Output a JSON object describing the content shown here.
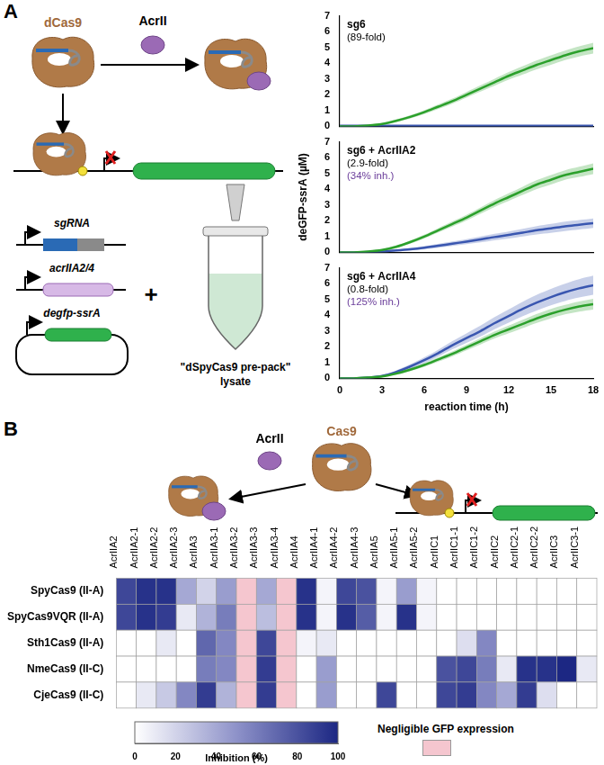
{
  "panel_labels": [
    "A",
    "B"
  ],
  "diagram_a": {
    "protein": "dCas9",
    "inhibitor": "AcrII",
    "genes": [
      "sgRNA",
      "acrIIA2/4",
      "degfp-ssrA"
    ],
    "plus": "+",
    "lysate": [
      "\"dSpyCas9 pre-pack\"",
      "lysate"
    ]
  },
  "diagram_b": {
    "protein": "Cas9",
    "inhibitor": "AcrII"
  },
  "chart_data": [
    {
      "type": "line",
      "annotations": [
        {
          "text": "sg6",
          "color": "#000000"
        },
        {
          "text": "(89-fold)",
          "color": "#000000"
        }
      ],
      "x": [
        0,
        1,
        2,
        3,
        4,
        5,
        6,
        7,
        8,
        9,
        10,
        11,
        12,
        13,
        14,
        15,
        16,
        17,
        18
      ],
      "series": [
        {
          "color": "#2ca02c",
          "values": [
            0,
            0,
            0.05,
            0.15,
            0.35,
            0.6,
            0.9,
            1.25,
            1.6,
            2.0,
            2.4,
            2.8,
            3.2,
            3.55,
            3.9,
            4.2,
            4.5,
            4.75,
            4.95
          ],
          "error": [
            0,
            0,
            0.02,
            0.05,
            0.08,
            0.1,
            0.12,
            0.14,
            0.16,
            0.18,
            0.2,
            0.22,
            0.24,
            0.26,
            0.28,
            0.3,
            0.3,
            0.32,
            0.34
          ]
        },
        {
          "color": "#3a56b0",
          "values": [
            0.03,
            0.03,
            0.03,
            0.03,
            0.03,
            0.03,
            0.03,
            0.03,
            0.03,
            0.03,
            0.03,
            0.03,
            0.03,
            0.03,
            0.03,
            0.03,
            0.03,
            0.03,
            0.03
          ],
          "error": [
            0.02,
            0.02,
            0.02,
            0.02,
            0.02,
            0.02,
            0.02,
            0.02,
            0.02,
            0.02,
            0.02,
            0.02,
            0.02,
            0.02,
            0.02,
            0.02,
            0.02,
            0.02,
            0.02
          ]
        }
      ],
      "xlim": [
        0,
        18
      ],
      "xticks": [
        0,
        3,
        6,
        9,
        12,
        15,
        18
      ],
      "ylim": [
        0,
        7
      ],
      "yticks": [
        0,
        1,
        2,
        3,
        4,
        5,
        6,
        7
      ],
      "tick_labels": "y",
      "grid": false
    },
    {
      "type": "line",
      "y_label": "deGFP-ssrA (µM)",
      "annotations": [
        {
          "text": "sg6 + AcrIIA2",
          "color": "#000000"
        },
        {
          "text": "(2.9-fold)",
          "color": "#000000"
        },
        {
          "text": "(34% inh.)",
          "color": "#6a3d9a"
        }
      ],
      "x": [
        0,
        1,
        2,
        3,
        4,
        5,
        6,
        7,
        8,
        9,
        10,
        11,
        12,
        13,
        14,
        15,
        16,
        17,
        18
      ],
      "series": [
        {
          "color": "#2ca02c",
          "values": [
            0,
            0,
            0.05,
            0.15,
            0.35,
            0.65,
            1.0,
            1.4,
            1.8,
            2.2,
            2.65,
            3.1,
            3.5,
            3.9,
            4.3,
            4.6,
            4.9,
            5.1,
            5.3
          ],
          "error": [
            0,
            0,
            0.02,
            0.05,
            0.08,
            0.1,
            0.12,
            0.14,
            0.16,
            0.18,
            0.2,
            0.22,
            0.24,
            0.26,
            0.28,
            0.3,
            0.3,
            0.32,
            0.34
          ]
        },
        {
          "color": "#3a56b0",
          "values": [
            0,
            0,
            0.02,
            0.05,
            0.12,
            0.2,
            0.3,
            0.42,
            0.55,
            0.68,
            0.82,
            0.97,
            1.1,
            1.25,
            1.4,
            1.52,
            1.65,
            1.75,
            1.85
          ],
          "error": [
            0,
            0,
            0.02,
            0.04,
            0.06,
            0.08,
            0.1,
            0.12,
            0.14,
            0.16,
            0.18,
            0.2,
            0.22,
            0.24,
            0.26,
            0.28,
            0.3,
            0.3,
            0.3
          ]
        }
      ],
      "xlim": [
        0,
        18
      ],
      "xticks": [
        0,
        3,
        6,
        9,
        12,
        15,
        18
      ],
      "ylim": [
        0,
        7
      ],
      "yticks": [
        0,
        1,
        2,
        3,
        4,
        5,
        6,
        7
      ],
      "tick_labels": "y",
      "grid": false
    },
    {
      "type": "line",
      "x_label": "reaction time (h)",
      "annotations": [
        {
          "text": "sg6 + AcrIIA4",
          "color": "#000000"
        },
        {
          "text": "(0.8-fold)",
          "color": "#000000"
        },
        {
          "text": "(125% inh.)",
          "color": "#6a3d9a"
        }
      ],
      "x": [
        0,
        1,
        2,
        3,
        4,
        5,
        6,
        7,
        8,
        9,
        10,
        11,
        12,
        13,
        14,
        15,
        16,
        17,
        18
      ],
      "series": [
        {
          "color": "#2ca02c",
          "values": [
            0,
            0,
            0.05,
            0.12,
            0.3,
            0.55,
            0.85,
            1.2,
            1.55,
            1.95,
            2.35,
            2.75,
            3.1,
            3.45,
            3.8,
            4.1,
            4.35,
            4.55,
            4.7
          ],
          "error": [
            0,
            0,
            0.02,
            0.05,
            0.08,
            0.1,
            0.12,
            0.14,
            0.16,
            0.18,
            0.2,
            0.22,
            0.24,
            0.26,
            0.28,
            0.3,
            0.3,
            0.32,
            0.34
          ]
        },
        {
          "color": "#3a56b0",
          "values": [
            0,
            0,
            0.05,
            0.15,
            0.4,
            0.75,
            1.15,
            1.6,
            2.1,
            2.55,
            3.0,
            3.5,
            3.95,
            4.4,
            4.8,
            5.15,
            5.45,
            5.7,
            5.9
          ],
          "error": [
            0,
            0,
            0.03,
            0.06,
            0.1,
            0.14,
            0.18,
            0.22,
            0.26,
            0.3,
            0.34,
            0.38,
            0.42,
            0.46,
            0.5,
            0.52,
            0.55,
            0.58,
            0.6
          ]
        }
      ],
      "xlim": [
        0,
        18
      ],
      "xticks": [
        0,
        3,
        6,
        9,
        12,
        15,
        18
      ],
      "ylim": [
        0,
        7
      ],
      "yticks": [
        0,
        1,
        2,
        3,
        4,
        5,
        6,
        7
      ],
      "grid": false
    },
    {
      "type": "heatmap",
      "categories": [
        "AcrIIA2",
        "AcrIIA2-1",
        "AcrIIA2-2",
        "AcrIIA2-3",
        "AcrIIA3",
        "AcrIIA3-1",
        "AcrIIA3-2",
        "AcrIIA3-3",
        "AcrIIA3-4",
        "AcrIIA4",
        "AcrIIA4-1",
        "AcrIIA4-2",
        "AcrIIA4-3",
        "AcrIIA5",
        "AcrIIA5-1",
        "AcrIIA5-2",
        "AcrIIC1",
        "AcrIIC1-1",
        "AcrIIC1-2",
        "AcrIIC2",
        "AcrIIC2-1",
        "AcrIIC2-2",
        "AcrIIC3",
        "AcrIIC3-1"
      ],
      "rows": [
        "SpyCas9 (II-A)",
        "SpyCas9VQR (II-A)",
        "Sth1Cas9 (II-A)",
        "NmeCas9 (II-C)",
        "CjeCas9 (II-C)"
      ],
      "cells": [
        [
          85,
          95,
          95,
          40,
          20,
          45,
          null,
          40,
          null,
          95,
          5,
          85,
          80,
          5,
          45,
          5,
          0,
          0,
          0,
          0,
          0,
          0,
          0,
          0
        ],
        [
          85,
          95,
          90,
          10,
          35,
          60,
          null,
          30,
          null,
          95,
          5,
          95,
          75,
          5,
          95,
          5,
          0,
          0,
          0,
          0,
          0,
          0,
          0,
          0
        ],
        [
          0,
          0,
          10,
          0,
          70,
          55,
          null,
          85,
          null,
          5,
          10,
          0,
          0,
          0,
          0,
          0,
          0,
          15,
          55,
          0,
          0,
          0,
          0,
          0
        ],
        [
          0,
          0,
          0,
          0,
          60,
          55,
          null,
          90,
          null,
          0,
          45,
          0,
          0,
          0,
          0,
          0,
          80,
          85,
          60,
          10,
          95,
          95,
          100,
          10
        ],
        [
          0,
          10,
          25,
          55,
          90,
          35,
          null,
          90,
          null,
          0,
          45,
          0,
          0,
          85,
          0,
          0,
          85,
          90,
          55,
          40,
          90,
          15,
          0,
          0
        ]
      ],
      "colorbar": {
        "label": "Inhibition (%)",
        "range": [
          0,
          100
        ],
        "ticks": [
          0,
          20,
          40,
          60,
          80,
          100
        ],
        "colors": [
          "#ffffff",
          "#8e92c9",
          "#1c2783"
        ]
      },
      "missing": {
        "label": "Negligible GFP expression",
        "color": "#f5c6cf"
      }
    }
  ]
}
